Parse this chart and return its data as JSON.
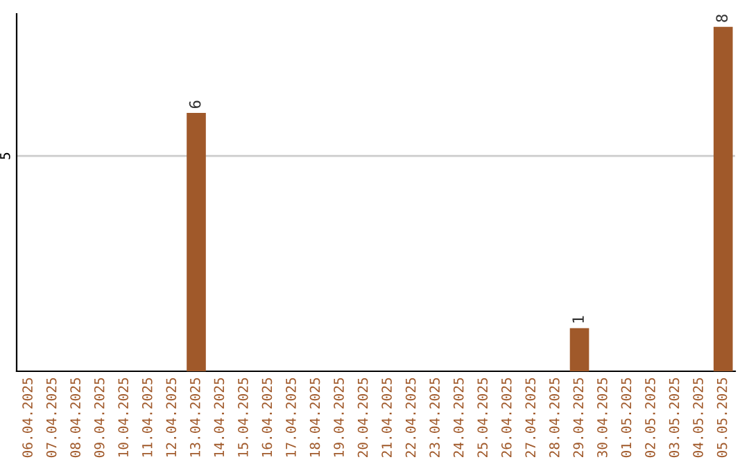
{
  "chart_data": {
    "type": "bar",
    "categories": [
      "06.04.2025",
      "07.04.2025",
      "08.04.2025",
      "09.04.2025",
      "10.04.2025",
      "11.04.2025",
      "12.04.2025",
      "13.04.2025",
      "14.04.2025",
      "15.04.2025",
      "16.04.2025",
      "17.04.2025",
      "18.04.2025",
      "19.04.2025",
      "20.04.2025",
      "21.04.2025",
      "22.04.2025",
      "23.04.2025",
      "24.04.2025",
      "25.04.2025",
      "26.04.2025",
      "27.04.2025",
      "28.04.2025",
      "29.04.2025",
      "30.04.2025",
      "01.05.2025",
      "02.05.2025",
      "03.05.2025",
      "04.05.2025",
      "05.05.2025"
    ],
    "values": [
      0,
      0,
      0,
      0,
      0,
      0,
      0,
      6,
      0,
      0,
      0,
      0,
      0,
      0,
      0,
      0,
      0,
      0,
      0,
      0,
      0,
      0,
      0,
      1,
      0,
      0,
      0,
      0,
      0,
      8
    ],
    "value_labels": [
      null,
      null,
      null,
      null,
      null,
      null,
      null,
      "6",
      null,
      null,
      null,
      null,
      null,
      null,
      null,
      null,
      null,
      null,
      null,
      null,
      null,
      null,
      null,
      "1",
      null,
      null,
      null,
      null,
      null,
      "8"
    ],
    "color": "#a0592a",
    "ylim": [
      0,
      8.3
    ],
    "yticks": [
      5
    ],
    "grid": "y"
  }
}
